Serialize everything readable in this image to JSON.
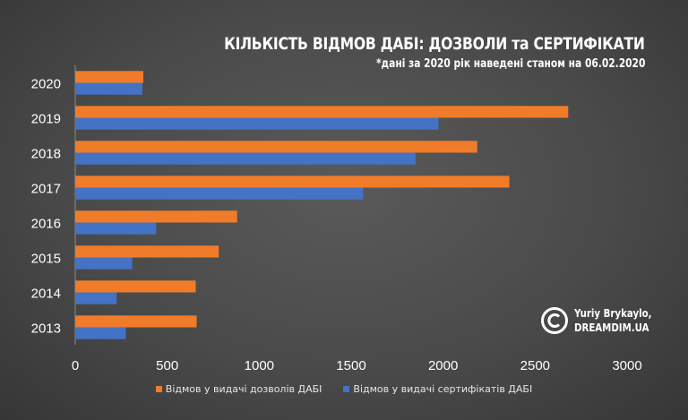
{
  "title": "КІЛЬКІСТЬ ВІДМОВ ДАБІ: ДОЗВОЛИ та СЕРТИФІКАТИ",
  "subtitle": "*дані за 2020 рік наведені станом на 06.02.2020",
  "watermark": {
    "icon": "copyright-icon",
    "author": "Yuriy Brykaylo,",
    "site": "DREAMDIM.UA"
  },
  "chart_data": {
    "type": "bar",
    "orientation": "horizontal",
    "categories": [
      "2020",
      "2019",
      "2018",
      "2017",
      "2016",
      "2015",
      "2014",
      "2013"
    ],
    "series": [
      {
        "name": "Відмов у видачі дозволів ДАБІ",
        "color": "#f07c2a",
        "values": [
          370,
          2680,
          2185,
          2360,
          880,
          780,
          655,
          660
        ]
      },
      {
        "name": "Відмов у видачі сертифікатів ДАБІ",
        "color": "#4472c4",
        "values": [
          365,
          1975,
          1850,
          1565,
          440,
          310,
          225,
          275
        ]
      }
    ],
    "xticks": [
      "0",
      "500",
      "1000",
      "1500",
      "2000",
      "2500",
      "3000"
    ],
    "xlim": [
      0,
      3000
    ],
    "grid": false,
    "legend_position": "bottom"
  }
}
